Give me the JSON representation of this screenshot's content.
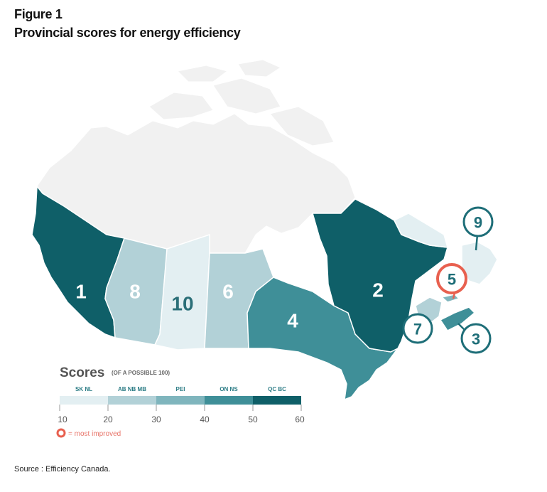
{
  "figure_label": "Figure 1",
  "title": "Provincial scores for energy efficiency",
  "source": "Source : Efficiency Canada.",
  "colors": {
    "territory": "#f1f1f1",
    "bin_10_20": "#e3eff2",
    "bin_20_30": "#b2d1d7",
    "bin_30_40": "#7fb5bd",
    "bin_40_50": "#3f8f98",
    "bin_50_60": "#0f5f68",
    "most_improved": "#e8604f",
    "callout_ring": "#1e6e78"
  },
  "provinces": [
    {
      "code": "BC",
      "rank": "1",
      "bin": "bin_50_60"
    },
    {
      "code": "AB",
      "rank": "8",
      "bin": "bin_20_30"
    },
    {
      "code": "SK",
      "rank": "10",
      "bin": "bin_10_20"
    },
    {
      "code": "MB",
      "rank": "6",
      "bin": "bin_20_30"
    },
    {
      "code": "ON",
      "rank": "4",
      "bin": "bin_40_50"
    },
    {
      "code": "QC",
      "rank": "2",
      "bin": "bin_50_60"
    },
    {
      "code": "NL",
      "rank": "9",
      "bin": "bin_10_20"
    },
    {
      "code": "NB",
      "rank": "7",
      "bin": "bin_20_30"
    },
    {
      "code": "PEI",
      "rank": "5",
      "bin": "bin_30_40",
      "most_improved": true
    },
    {
      "code": "NS",
      "rank": "3",
      "bin": "bin_40_50"
    }
  ],
  "legend": {
    "title": "Scores",
    "subtitle": "(OF A POSSIBLE 100)",
    "groups": [
      "SK NL",
      "AB NB MB",
      "PEI",
      "ON NS",
      "QC BC"
    ],
    "ticks": [
      "10",
      "20",
      "30",
      "40",
      "50",
      "60"
    ],
    "most_improved_label": "= most improved"
  }
}
